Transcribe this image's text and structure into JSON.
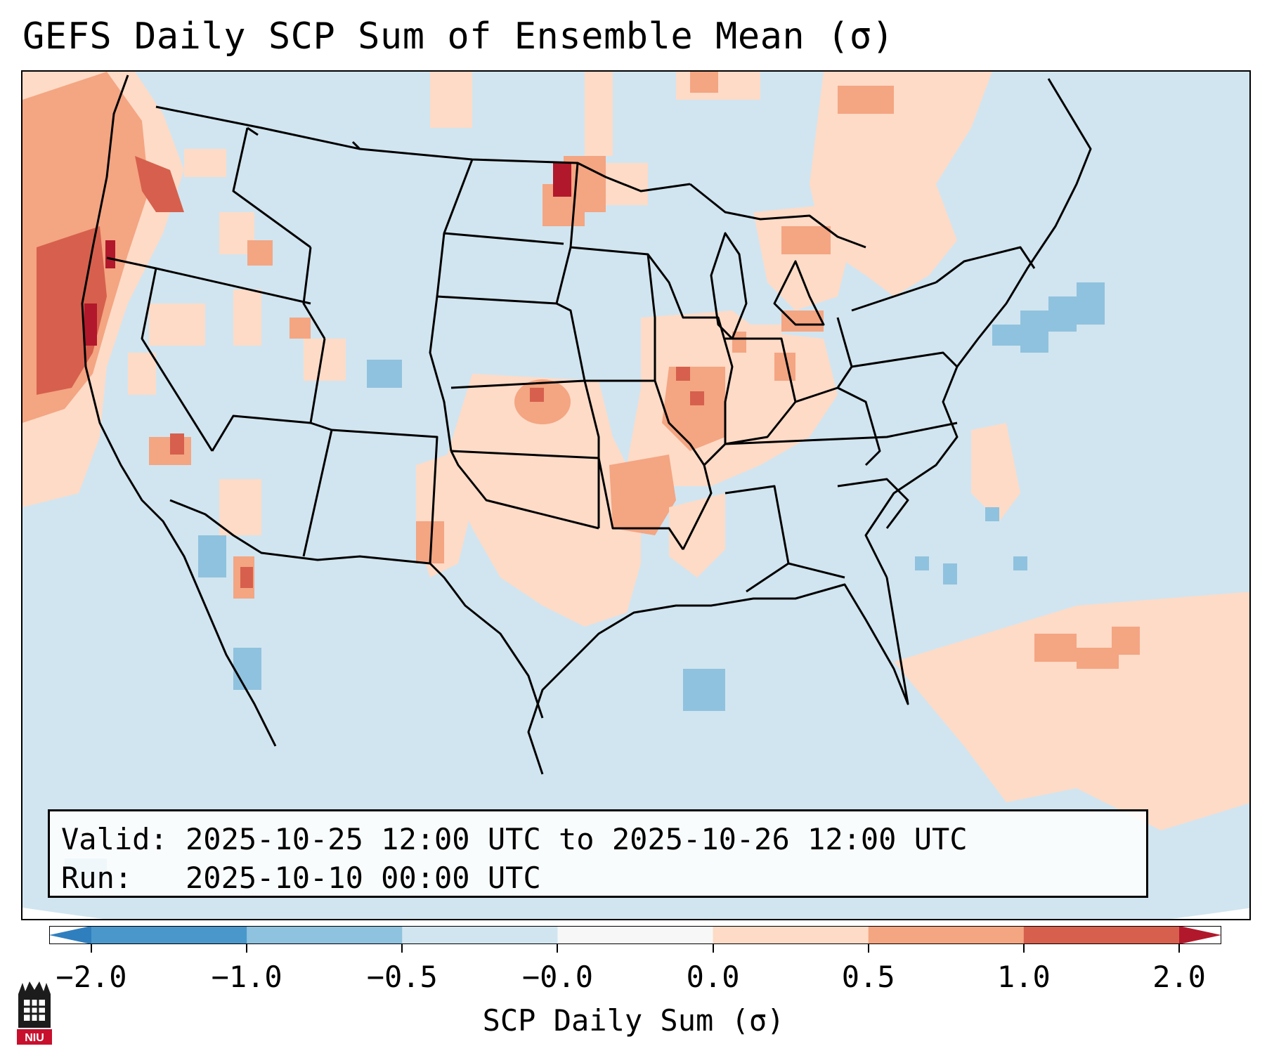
{
  "title": "GEFS Daily SCP Sum of Ensemble Mean (σ)",
  "info": {
    "valid_label": "Valid:",
    "valid_range": "2025-10-25 12:00 UTC to 2025-10-26 12:00 UTC",
    "run_label": "Run:",
    "run_time": "2025-10-10 00:00 UTC"
  },
  "colorbar": {
    "label": "SCP Daily Sum (σ)",
    "tick_labels": [
      "−2.0",
      "−1.0",
      "−0.5",
      "−0.0",
      "0.0",
      "0.5",
      "1.0",
      "2.0"
    ],
    "bins": [
      {
        "range": "< -2.0",
        "color": "#2f7fbf"
      },
      {
        "range": "-2.0 to -1.0",
        "color": "#4a98cb"
      },
      {
        "range": "-1.0 to -0.5",
        "color": "#8fc2de"
      },
      {
        "range": "-0.5 to -0.0",
        "color": "#d1e5f0"
      },
      {
        "range": "-0.0 to 0.0",
        "color": "#f7f7f7"
      },
      {
        "range": "0.0 to 0.5",
        "color": "#fddbc7"
      },
      {
        "range": "0.5 to 1.0",
        "color": "#f4a582"
      },
      {
        "range": "1.0 to 2.0",
        "color": "#d6604d"
      },
      {
        "range": "> 2.0",
        "color": "#b2182b"
      }
    ]
  },
  "colors": {
    "background_field": "#d1e5f0",
    "weak_positive": "#fddbc7",
    "moderate_positive": "#f4a582",
    "strong_positive": "#d6604d",
    "extreme_positive": "#b2182b",
    "weak_negative": "#8fc2de"
  },
  "logo": {
    "name": "niu-logo",
    "text": "NIU"
  }
}
